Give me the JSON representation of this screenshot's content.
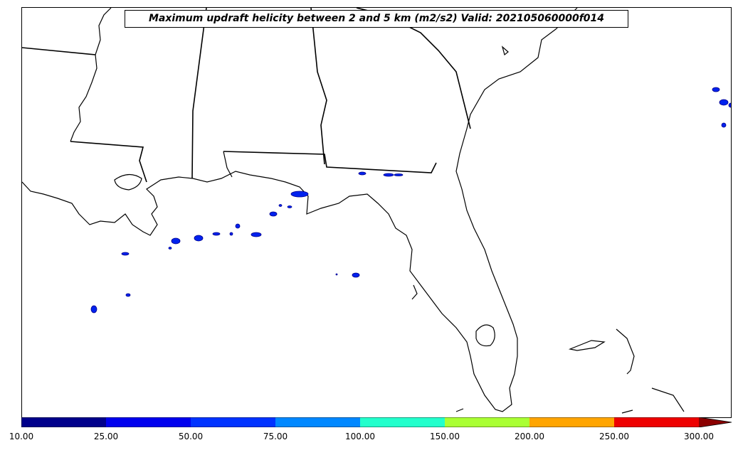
{
  "title": "Maximum updraft helicity between 2 and 5 km (m2/s2) Valid: 202105060000f014",
  "colorbar": {
    "ticks": [
      "10.00",
      "25.00",
      "50.00",
      "75.00",
      "100.00",
      "150.00",
      "200.00",
      "250.00",
      "300.00"
    ],
    "colors": [
      "#00008b",
      "#0000ee",
      "#0033ff",
      "#0088ff",
      "#22ffcc",
      "#aaff33",
      "#ffa500",
      "#ee0000",
      "#8b0000"
    ]
  },
  "helicity_cells_color": "#0022ee",
  "colors": {
    "map_lines": "#000000",
    "background": "#ffffff"
  }
}
